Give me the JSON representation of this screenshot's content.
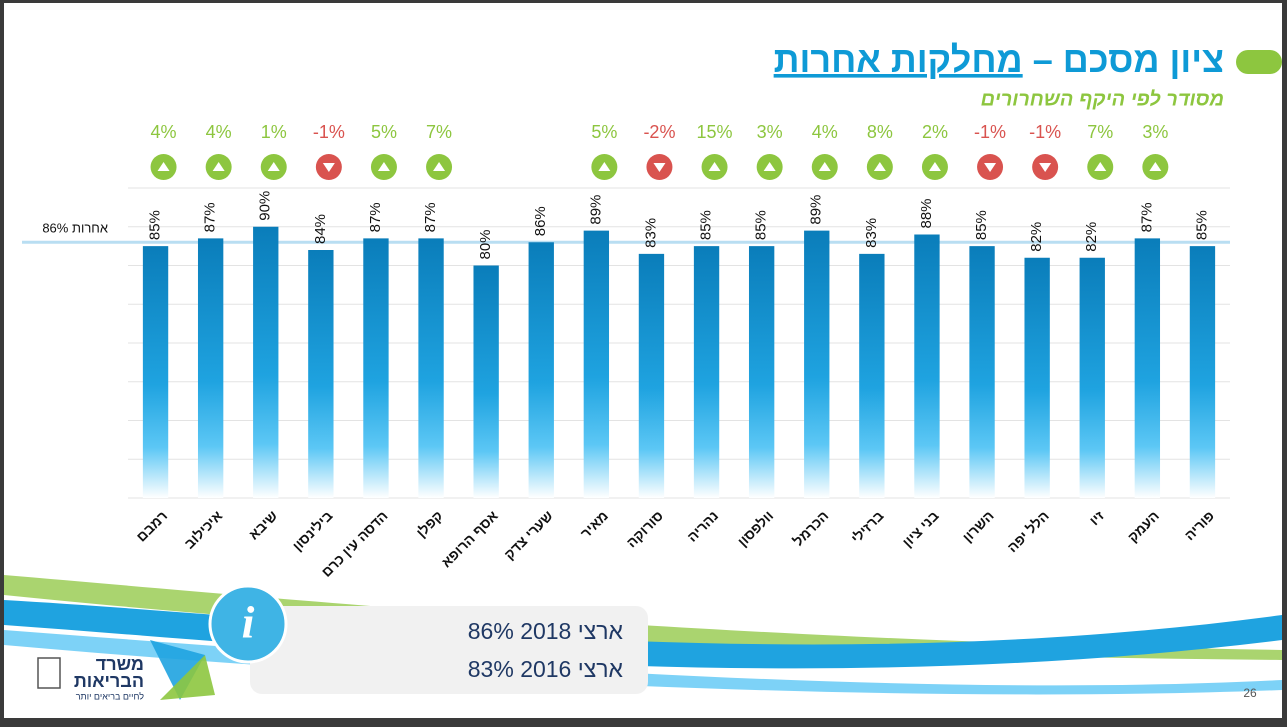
{
  "chart_data": {
    "type": "bar",
    "title": [
      "ציון מסכם –",
      "מחלקות אחרות"
    ],
    "subtitle": "מסודר לפי היקף השחרורים",
    "categories": [
      "רמבם",
      "איכילוב",
      "שיבא",
      "בילינסון",
      "הדסה עין כרם",
      "קפלן",
      "אסף הרופא",
      "שערי צדק",
      "מאיר",
      "סורוקה",
      "נהריה",
      "וולפסון",
      "הכרמל",
      "ברזילי",
      "בני ציון",
      "השרון",
      "הלל יפה",
      "זיו",
      "העמק",
      "פוריה"
    ],
    "values": [
      85,
      87,
      90,
      84,
      87,
      87,
      80,
      86,
      89,
      83,
      85,
      85,
      89,
      83,
      88,
      85,
      82,
      82,
      87,
      85
    ],
    "value_labels": [
      "85%",
      "87%",
      "90%",
      "84%",
      "87%",
      "87%",
      "80%",
      "86%",
      "89%",
      "83%",
      "85%",
      "85%",
      "89%",
      "83%",
      "88%",
      "85%",
      "82%",
      "82%",
      "87%",
      "85%"
    ],
    "changes": [
      4,
      4,
      1,
      -1,
      5,
      7,
      null,
      null,
      5,
      -2,
      15,
      3,
      4,
      8,
      2,
      -1,
      -1,
      7,
      3,
      null
    ],
    "change_labels": [
      "4%",
      "4%",
      "1%",
      "-1%",
      "5%",
      "7%",
      null,
      null,
      "5%",
      "-2%",
      "15%",
      "3%",
      "4%",
      "8%",
      "2%",
      "-1%",
      "-1%",
      "7%",
      "3%",
      null
    ],
    "reference": {
      "value": 86,
      "label": "אחרות 86%"
    },
    "color": "#0a7dba",
    "ylim": [
      20,
      100
    ],
    "yticks": [
      20,
      30,
      40,
      50,
      60,
      70,
      80,
      90,
      100
    ],
    "grid": true
  },
  "info": [
    "ארצי 2018 86%",
    "ארצי 2016 83%"
  ],
  "logo": [
    "משרד",
    "הבריאות",
    "לחיים בריאים יותר"
  ],
  "page_number": "26"
}
